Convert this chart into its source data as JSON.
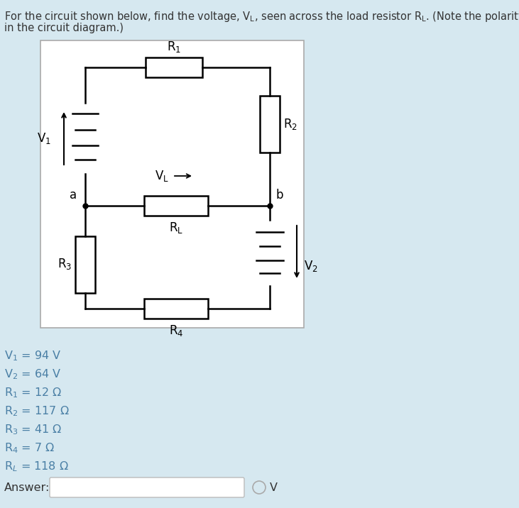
{
  "bg_color": "#d6e8f0",
  "diagram_bg": "#ffffff",
  "text_color": "#4a7fa5",
  "params": [
    {
      "label": "V",
      "sub": "1",
      "value": " = 94 V"
    },
    {
      "label": "V",
      "sub": "2",
      "value": " = 64 V"
    },
    {
      "label": "R",
      "sub": "1",
      "value": " = 12 Ω"
    },
    {
      "label": "R",
      "sub": "2",
      "value": " = 117 Ω"
    },
    {
      "label": "R",
      "sub": "3",
      "value": " = 41 Ω"
    },
    {
      "label": "R",
      "sub": "4",
      "value": " = 7 Ω"
    },
    {
      "label": "R",
      "sub": "L",
      "value": " = 118 Ω"
    }
  ]
}
